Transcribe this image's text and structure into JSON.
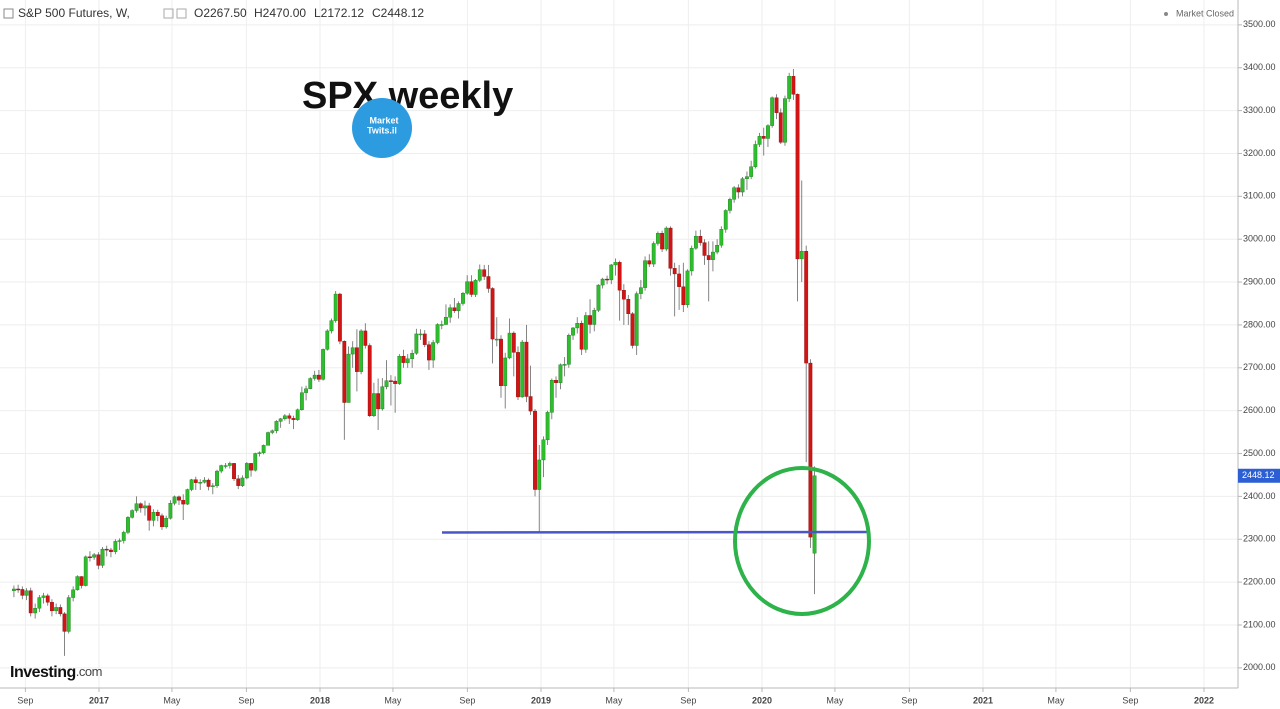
{
  "header": {
    "symbol": "S&P 500 Futures, W,",
    "ohlc": [
      "O2267.50",
      "H2470.00",
      "L2172.12",
      "C2448.12"
    ],
    "status": "Market Closed",
    "brand": "Investing",
    "brand_suffix": ".com",
    "logo": [
      "Market",
      "Twits.il"
    ]
  },
  "chart_data": {
    "type": "candlestick",
    "title": "SPX weekly",
    "last_price_label": "2448.12",
    "up_color": "#2dbd2d",
    "down_color": "#d41414",
    "grid": true,
    "xlim": [
      2016.552,
      2022.154
    ],
    "ylim": [
      1953,
      3558
    ],
    "xticks": [
      {
        "value": 2016.667,
        "label": "Sep"
      },
      {
        "value": 2017,
        "label": "2017"
      },
      {
        "value": 2017.33,
        "label": "May"
      },
      {
        "value": 2017.667,
        "label": "Sep"
      },
      {
        "value": 2018,
        "label": "2018"
      },
      {
        "value": 2018.33,
        "label": "May"
      },
      {
        "value": 2018.667,
        "label": "Sep"
      },
      {
        "value": 2019,
        "label": "2019"
      },
      {
        "value": 2019.33,
        "label": "May"
      },
      {
        "value": 2019.667,
        "label": "Sep"
      },
      {
        "value": 2020,
        "label": "2020"
      },
      {
        "value": 2020.33,
        "label": "May"
      },
      {
        "value": 2020.667,
        "label": "Sep"
      },
      {
        "value": 2021,
        "label": "2021"
      },
      {
        "value": 2021.33,
        "label": "May"
      },
      {
        "value": 2021.667,
        "label": "Sep"
      },
      {
        "value": 2022,
        "label": "2022"
      }
    ],
    "yticks": [
      {
        "value": 2000,
        "label": "2000.00"
      },
      {
        "value": 2100,
        "label": "2100.00"
      },
      {
        "value": 2200,
        "label": "2200.00"
      },
      {
        "value": 2300,
        "label": "2300.00"
      },
      {
        "value": 2400,
        "label": "2400.00"
      },
      {
        "value": 2500,
        "label": "2500.00"
      },
      {
        "value": 2600,
        "label": "2600.00"
      },
      {
        "value": 2700,
        "label": "2700.00"
      },
      {
        "value": 2800,
        "label": "2800.00"
      },
      {
        "value": 2900,
        "label": "2900.00"
      },
      {
        "value": 3000,
        "label": "3000.00"
      },
      {
        "value": 3100,
        "label": "3100.00"
      },
      {
        "value": 3200,
        "label": "3200.00"
      },
      {
        "value": 3300,
        "label": "3300.00"
      },
      {
        "value": 3400,
        "label": "3400.00"
      },
      {
        "value": 3500,
        "label": "3500.00"
      }
    ],
    "x": [
      2016.615,
      2016.634,
      2016.653,
      2016.672,
      2016.691,
      2016.711,
      2016.73,
      2016.749,
      2016.768,
      2016.787,
      2016.806,
      2016.825,
      2016.844,
      2016.863,
      2016.883,
      2016.902,
      2016.921,
      2016.94,
      2016.959,
      2016.978,
      2016.997,
      2017.016,
      2017.035,
      2017.054,
      2017.074,
      2017.093,
      2017.112,
      2017.131,
      2017.15,
      2017.17,
      2017.189,
      2017.208,
      2017.227,
      2017.246,
      2017.266,
      2017.285,
      2017.304,
      2017.323,
      2017.342,
      2017.362,
      2017.381,
      2017.4,
      2017.419,
      2017.438,
      2017.458,
      2017.477,
      2017.496,
      2017.515,
      2017.534,
      2017.553,
      2017.573,
      2017.592,
      2017.611,
      2017.63,
      2017.649,
      2017.669,
      2017.688,
      2017.707,
      2017.726,
      2017.745,
      2017.765,
      2017.784,
      2017.803,
      2017.822,
      2017.841,
      2017.861,
      2017.88,
      2017.899,
      2017.918,
      2017.937,
      2017.956,
      2017.976,
      2017.995,
      2018.014,
      2018.033,
      2018.052,
      2018.071,
      2018.09,
      2018.11,
      2018.129,
      2018.148,
      2018.167,
      2018.186,
      2018.205,
      2018.225,
      2018.244,
      2018.263,
      2018.282,
      2018.301,
      2018.321,
      2018.34,
      2018.359,
      2018.378,
      2018.397,
      2018.417,
      2018.436,
      2018.455,
      2018.474,
      2018.493,
      2018.512,
      2018.532,
      2018.551,
      2018.57,
      2018.589,
      2018.608,
      2018.627,
      2018.647,
      2018.666,
      2018.685,
      2018.704,
      2018.723,
      2018.743,
      2018.762,
      2018.781,
      2018.8,
      2018.819,
      2018.838,
      2018.858,
      2018.877,
      2018.896,
      2018.915,
      2018.934,
      2018.953,
      2018.973,
      2018.992,
      2019.011,
      2019.03,
      2019.049,
      2019.068,
      2019.088,
      2019.107,
      2019.126,
      2019.145,
      2019.164,
      2019.184,
      2019.203,
      2019.222,
      2019.241,
      2019.26,
      2019.279,
      2019.299,
      2019.318,
      2019.337,
      2019.356,
      2019.375,
      2019.395,
      2019.414,
      2019.433,
      2019.452,
      2019.471,
      2019.49,
      2019.51,
      2019.529,
      2019.548,
      2019.567,
      2019.586,
      2019.605,
      2019.625,
      2019.644,
      2019.663,
      2019.682,
      2019.701,
      2019.721,
      2019.74,
      2019.759,
      2019.778,
      2019.797,
      2019.816,
      2019.836,
      2019.855,
      2019.874,
      2019.893,
      2019.912,
      2019.932,
      2019.951,
      2019.97,
      2019.989,
      2020.008,
      2020.027,
      2020.046,
      2020.066,
      2020.085,
      2020.104,
      2020.123,
      2020.142,
      2020.161,
      2020.18,
      2020.2,
      2020.219,
      2020.238
    ],
    "open": [
      2180,
      2184,
      2183,
      2169,
      2180,
      2128,
      2139,
      2164,
      2168,
      2153,
      2133,
      2141,
      2126,
      2085,
      2164,
      2182,
      2213,
      2192,
      2259,
      2258,
      2264,
      2239,
      2277,
      2275,
      2271,
      2295,
      2297,
      2316,
      2351,
      2367,
      2383,
      2373,
      2378,
      2344,
      2363,
      2355,
      2329,
      2349,
      2384,
      2399,
      2391,
      2382,
      2416,
      2439,
      2432,
      2433,
      2438,
      2423,
      2425,
      2459,
      2472,
      2472,
      2477,
      2441,
      2425,
      2443,
      2477,
      2461,
      2500,
      2502,
      2519,
      2549,
      2553,
      2575,
      2581,
      2588,
      2582,
      2579,
      2602,
      2642,
      2651,
      2675,
      2683,
      2673,
      2743,
      2786,
      2810,
      2872,
      2762,
      2619,
      2732,
      2747,
      2691,
      2786,
      2752,
      2588,
      2640,
      2604,
      2656,
      2670,
      2669,
      2663,
      2727,
      2712,
      2721,
      2734,
      2779,
      2779,
      2754,
      2718,
      2759,
      2801,
      2801,
      2818,
      2840,
      2833,
      2850,
      2874,
      2901,
      2871,
      2904,
      2929,
      2913,
      2885,
      2767,
      2767,
      2658,
      2723,
      2781,
      2736,
      2632,
      2760,
      2633,
      2599,
      2416,
      2485,
      2532,
      2596,
      2671,
      2665,
      2707,
      2708,
      2776,
      2793,
      2804,
      2743,
      2822,
      2801,
      2834,
      2893,
      2907,
      2905,
      2940,
      2946,
      2881,
      2860,
      2826,
      2752,
      2873,
      2887,
      2950,
      2942,
      2990,
      3014,
      2977,
      3026,
      2932,
      2919,
      2889,
      2847,
      2926,
      2979,
      3007,
      2992,
      2962,
      2952,
      2970,
      2986,
      3023,
      3067,
      3093,
      3120,
      3110,
      3141,
      3146,
      3169,
      3221,
      3240,
      3235,
      3265,
      3330,
      3295,
      3226,
      3328,
      3380,
      3338,
      2954,
      2972,
      2711,
      2267.5
    ],
    "high": [
      2192,
      2194,
      2190,
      2186,
      2187,
      2150,
      2170,
      2175,
      2173,
      2160,
      2150,
      2148,
      2130,
      2170,
      2190,
      2216,
      2214,
      2262,
      2272,
      2268,
      2270,
      2282,
      2285,
      2280,
      2300,
      2302,
      2320,
      2354,
      2370,
      2400,
      2386,
      2390,
      2385,
      2370,
      2369,
      2360,
      2355,
      2391,
      2402,
      2402,
      2405,
      2418,
      2441,
      2446,
      2440,
      2445,
      2442,
      2431,
      2462,
      2474,
      2478,
      2481,
      2478,
      2450,
      2449,
      2480,
      2478,
      2502,
      2505,
      2521,
      2551,
      2556,
      2578,
      2583,
      2592,
      2594,
      2588,
      2605,
      2656,
      2658,
      2678,
      2693,
      2695,
      2745,
      2790,
      2815,
      2879,
      2875,
      2764,
      2750,
      2762,
      2790,
      2790,
      2804,
      2757,
      2665,
      2675,
      2676,
      2718,
      2683,
      2680,
      2732,
      2742,
      2732,
      2742,
      2791,
      2790,
      2788,
      2762,
      2765,
      2804,
      2810,
      2848,
      2848,
      2863,
      2855,
      2877,
      2916,
      2916,
      2907,
      2941,
      2940,
      2940,
      2888,
      2818,
      2776,
      2735,
      2815,
      2785,
      2750,
      2765,
      2800,
      2705,
      2604,
      2520,
      2540,
      2600,
      2675,
      2680,
      2710,
      2725,
      2780,
      2795,
      2818,
      2810,
      2830,
      2860,
      2840,
      2895,
      2910,
      2915,
      2942,
      2955,
      2950,
      2895,
      2870,
      2830,
      2878,
      2905,
      2960,
      2965,
      2995,
      3018,
      3020,
      3030,
      3030,
      2945,
      2940,
      2945,
      2930,
      2985,
      3020,
      3022,
      3000,
      2995,
      2995,
      3000,
      3030,
      3070,
      3097,
      3124,
      3128,
      3145,
      3158,
      3183,
      3230,
      3248,
      3260,
      3268,
      3333,
      3338,
      3305,
      3335,
      3388,
      3397,
      3340,
      3137,
      2985,
      2720,
      2470
    ],
    "low": [
      2165,
      2175,
      2160,
      2158,
      2120,
      2115,
      2130,
      2150,
      2145,
      2120,
      2125,
      2120,
      2028,
      2080,
      2155,
      2180,
      2185,
      2190,
      2248,
      2252,
      2230,
      2233,
      2260,
      2258,
      2265,
      2275,
      2290,
      2312,
      2348,
      2362,
      2362,
      2355,
      2320,
      2330,
      2342,
      2322,
      2325,
      2346,
      2379,
      2380,
      2345,
      2380,
      2412,
      2415,
      2415,
      2430,
      2414,
      2405,
      2420,
      2454,
      2465,
      2465,
      2436,
      2417,
      2422,
      2440,
      2446,
      2458,
      2493,
      2498,
      2519,
      2545,
      2547,
      2560,
      2577,
      2569,
      2557,
      2576,
      2600,
      2624,
      2650,
      2670,
      2667,
      2670,
      2740,
      2780,
      2805,
      2755,
      2532,
      2620,
      2700,
      2645,
      2685,
      2745,
      2585,
      2585,
      2555,
      2600,
      2650,
      2612,
      2595,
      2660,
      2700,
      2700,
      2700,
      2730,
      2765,
      2748,
      2695,
      2700,
      2755,
      2790,
      2800,
      2805,
      2828,
      2815,
      2845,
      2870,
      2865,
      2865,
      2900,
      2905,
      2875,
      2710,
      2750,
      2630,
      2605,
      2720,
      2680,
      2625,
      2630,
      2620,
      2590,
      2400,
      2316,
      2445,
      2520,
      2580,
      2630,
      2650,
      2680,
      2700,
      2765,
      2780,
      2730,
      2735,
      2780,
      2785,
      2830,
      2885,
      2895,
      2895,
      2915,
      2810,
      2800,
      2800,
      2745,
      2730,
      2860,
      2880,
      2935,
      2935,
      2985,
      2970,
      2972,
      2915,
      2820,
      2835,
      2830,
      2840,
      2915,
      2975,
      2985,
      2940,
      2855,
      2925,
      2965,
      2980,
      3015,
      3060,
      3085,
      3095,
      3100,
      3115,
      3140,
      3165,
      3215,
      3195,
      3215,
      3260,
      3280,
      3222,
      3218,
      3320,
      3325,
      2855,
      2900,
      2480,
      2280,
      2172.12
    ],
    "close": [
      2184,
      2183,
      2169,
      2180,
      2128,
      2139,
      2164,
      2168,
      2153,
      2133,
      2141,
      2126,
      2085,
      2164,
      2182,
      2213,
      2192,
      2259,
      2258,
      2264,
      2239,
      2277,
      2275,
      2271,
      2295,
      2297,
      2316,
      2351,
      2367,
      2383,
      2373,
      2378,
      2344,
      2363,
      2355,
      2329,
      2349,
      2384,
      2399,
      2391,
      2382,
      2416,
      2439,
      2432,
      2433,
      2438,
      2423,
      2425,
      2459,
      2472,
      2472,
      2477,
      2441,
      2425,
      2443,
      2477,
      2461,
      2500,
      2502,
      2519,
      2549,
      2553,
      2575,
      2581,
      2588,
      2582,
      2579,
      2602,
      2642,
      2651,
      2675,
      2683,
      2673,
      2743,
      2786,
      2810,
      2872,
      2762,
      2619,
      2732,
      2747,
      2691,
      2786,
      2752,
      2588,
      2640,
      2604,
      2656,
      2670,
      2669,
      2663,
      2727,
      2712,
      2721,
      2734,
      2779,
      2779,
      2754,
      2718,
      2759,
      2801,
      2801,
      2818,
      2840,
      2833,
      2850,
      2874,
      2901,
      2871,
      2904,
      2929,
      2913,
      2885,
      2767,
      2767,
      2658,
      2723,
      2781,
      2736,
      2632,
      2760,
      2633,
      2599,
      2416,
      2485,
      2532,
      2596,
      2671,
      2665,
      2707,
      2708,
      2776,
      2793,
      2804,
      2743,
      2822,
      2801,
      2834,
      2893,
      2907,
      2905,
      2940,
      2946,
      2881,
      2860,
      2826,
      2752,
      2873,
      2887,
      2950,
      2942,
      2990,
      3014,
      2977,
      3026,
      2932,
      2919,
      2889,
      2847,
      2926,
      2979,
      3007,
      2992,
      2962,
      2952,
      2970,
      2986,
      3023,
      3067,
      3093,
      3120,
      3110,
      3141,
      3146,
      3169,
      3221,
      3240,
      3235,
      3265,
      3330,
      3295,
      3226,
      3328,
      3380,
      3338,
      2954,
      2972,
      2711,
      2305,
      2448.12
    ]
  }
}
